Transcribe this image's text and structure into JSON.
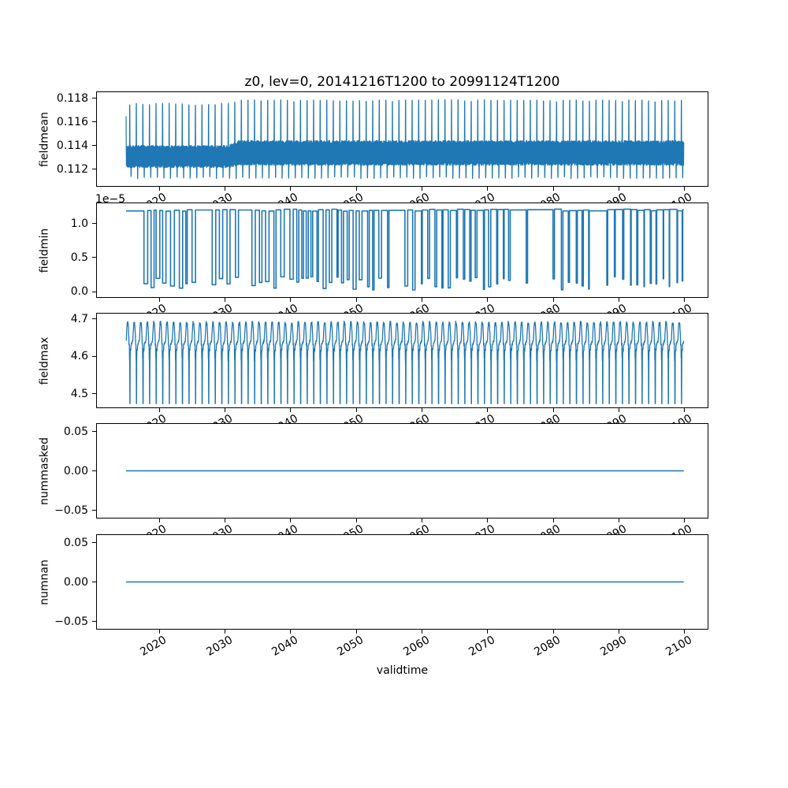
{
  "chart_data": {
    "type": "line",
    "title": "z0, lev=0, 20141216T1200 to 20991124T1200",
    "xlabel": "validtime",
    "line_color": "#1f77b4",
    "axis_color": "#000000",
    "x_start": 2014.958,
    "x_end": 2099.9,
    "xlim": [
      2010.52,
      2103.52
    ],
    "xticks": [
      2020,
      2030,
      2040,
      2050,
      2060,
      2070,
      2080,
      2090,
      2100
    ],
    "xtick_labels": [
      "2020",
      "2030",
      "2040",
      "2050",
      "2060",
      "2070",
      "2080",
      "2090",
      "2100"
    ],
    "xtick_rotation_deg": 30,
    "period_years": 1,
    "n_cycles": 85,
    "grid": false,
    "legend": "none",
    "subplots": [
      {
        "name": "fieldmean",
        "ylabel": "fieldmean",
        "ylim": [
          0.1106,
          0.118533
        ],
        "yticks": [
          0.112,
          0.114,
          0.116,
          0.118
        ],
        "ytick_labels": [
          "0.112",
          "0.114",
          "0.116",
          "0.118"
        ],
        "pattern": "seasonal-band-spike",
        "params": {
          "band_low": 0.11227,
          "band_high": 0.1139,
          "peak": 0.1175,
          "trough": 0.11132,
          "shift_year": 2031,
          "band_shift": 0.0002,
          "peak_shift": 0.0003,
          "first_value": 0.1165
        },
        "stroke_width": 1.2
      },
      {
        "name": "fieldmin",
        "ylabel": "fieldmin",
        "offset_text": "1e−5",
        "value_scale": 1e-05,
        "ylim": [
          -0.08,
          1.3
        ],
        "yticks": [
          0.0,
          0.5,
          1.0
        ],
        "ytick_labels": [
          "0.0",
          "0.5",
          "1.0"
        ],
        "pattern": "square",
        "params": {
          "high": 1.2,
          "high_jitter": 0.03,
          "low_min": 0.02,
          "low_max": 0.22,
          "note": "square wave ~annual; wide low dips early, narrow needles after ~2070"
        },
        "stroke_width": 1.6
      },
      {
        "name": "fieldmax",
        "ylabel": "fieldmax",
        "ylim": [
          4.4642,
          4.7147
        ],
        "yticks": [
          4.5,
          4.6,
          4.7
        ],
        "ytick_labels": [
          "4.5",
          "4.6",
          "4.7"
        ],
        "pattern": "plateau-dip",
        "params": {
          "top": 4.694,
          "shoulder": 4.632,
          "low_shoulder": 4.594,
          "dip": 4.474
        },
        "stroke_width": 1.3
      },
      {
        "name": "nummasked",
        "ylabel": "nummasked",
        "ylim": [
          -0.0595,
          0.0595
        ],
        "yticks": [
          -0.05,
          0.0,
          0.05
        ],
        "ytick_labels": [
          "−0.05",
          "0.00",
          "0.05"
        ],
        "pattern": "constant",
        "params": {
          "value": 0
        },
        "stroke_width": 1.5
      },
      {
        "name": "numnan",
        "ylabel": "numnan",
        "ylim": [
          -0.0595,
          0.0595
        ],
        "yticks": [
          -0.05,
          0.0,
          0.05
        ],
        "ytick_labels": [
          "−0.05",
          "0.00",
          "0.05"
        ],
        "pattern": "constant",
        "params": {
          "value": 0
        },
        "stroke_width": 1.5
      }
    ]
  }
}
